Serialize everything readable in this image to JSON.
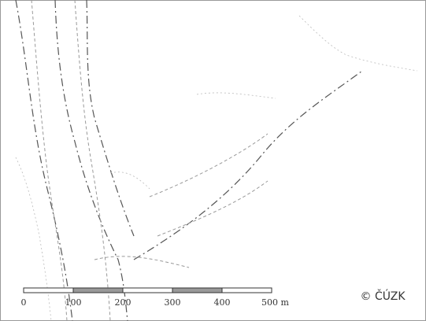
{
  "scale_bar": {
    "labels": [
      "0",
      "100",
      "200",
      "300",
      "400",
      "500 m"
    ]
  },
  "copyright": "© ČÚZK"
}
